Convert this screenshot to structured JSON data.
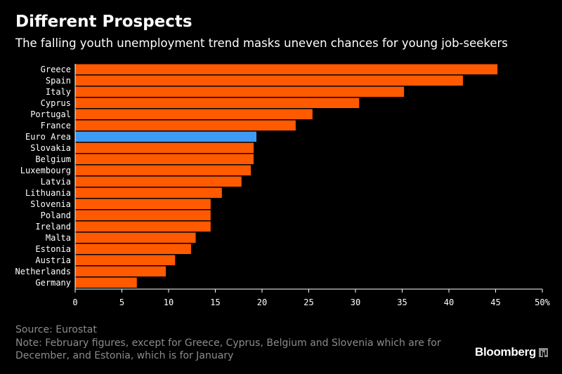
{
  "header": {
    "title": "Different Prospects",
    "subtitle": "The falling youth unemployment trend masks uneven chances for young job-seekers"
  },
  "footer": {
    "source": "Source: Eurostat",
    "note": "Note: February figures, except for Greece, Cyprus, Belgium and Slovenia which are for December, and Estonia, which is for January",
    "brand": "Bloomberg"
  },
  "colors": {
    "bar": "#ff5a00",
    "highlight": "#3d9bf5",
    "background": "#000000",
    "axis": "#ffffff",
    "footer_text": "#8c8c8c"
  },
  "icons": {
    "brand": "bloomberg-chart-icon"
  },
  "chart_data": {
    "type": "bar",
    "orientation": "horizontal",
    "categories": [
      "Greece",
      "Spain",
      "Italy",
      "Cyprus",
      "Portugal",
      "France",
      "Euro Area",
      "Slovakia",
      "Belgium",
      "Luxembourg",
      "Latvia",
      "Lithuania",
      "Slovenia",
      "Poland",
      "Ireland",
      "Malta",
      "Estonia",
      "Austria",
      "Netherlands",
      "Germany"
    ],
    "values": [
      45.2,
      41.5,
      35.2,
      30.4,
      25.4,
      23.6,
      19.4,
      19.1,
      19.1,
      18.8,
      17.8,
      15.7,
      14.5,
      14.5,
      14.5,
      12.9,
      12.4,
      10.7,
      9.7,
      6.6
    ],
    "highlight": "Euro Area",
    "xlim": [
      0,
      50
    ],
    "xticks": [
      0,
      5,
      10,
      15,
      20,
      25,
      30,
      35,
      40,
      45,
      50
    ],
    "xtick_labels": [
      "0",
      "5",
      "10",
      "15",
      "20",
      "25",
      "30",
      "35",
      "40",
      "45",
      "50%"
    ],
    "grid": false,
    "legend": "none"
  }
}
